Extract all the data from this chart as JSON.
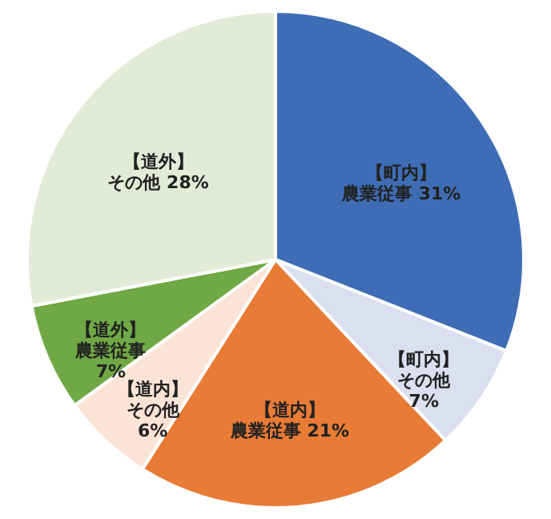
{
  "chart_data": {
    "type": "pie",
    "categories": [
      "【町内】農業従事",
      "【町内】その他",
      "【道内】農業従事",
      "【道内】その他",
      "【道外】農業従事",
      "【道外】その他"
    ],
    "values": [
      31,
      7,
      21,
      6,
      7,
      28
    ],
    "colors": [
      "#3f6db5",
      "#dae0ef",
      "#e87b35",
      "#fbe4d6",
      "#70a845",
      "#e2ebd6"
    ],
    "value_labels": [
      "31%",
      "7%",
      "21%",
      "6%",
      "7%",
      "28%"
    ],
    "legend": false
  }
}
